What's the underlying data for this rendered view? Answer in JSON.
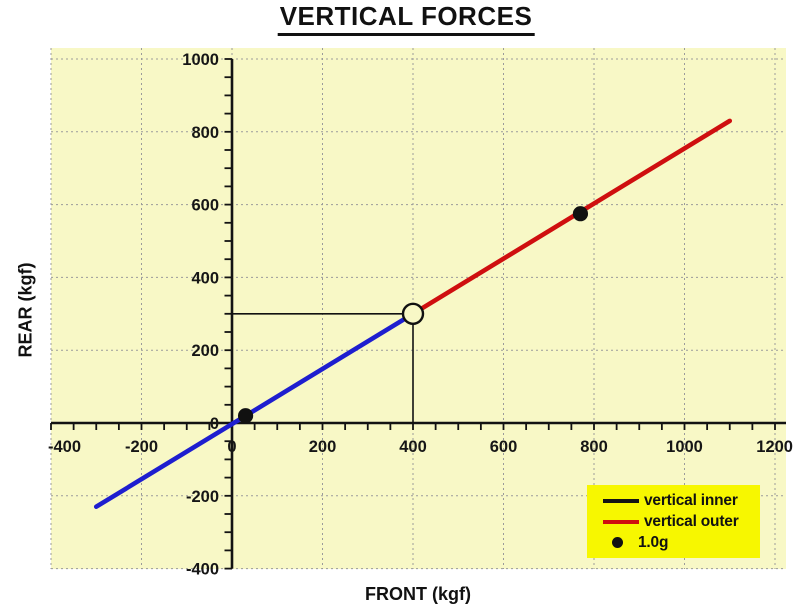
{
  "colors": {
    "page_bg": "#ffffff",
    "plot_bg": "#f8f8c6",
    "legend_bg": "#f7f700",
    "grid": "#9b9b9b",
    "axis": "#131313",
    "inner_line": "#1e1ecf",
    "outer_line": "#cf0f0f",
    "marker": "#111111"
  },
  "chart_data": {
    "type": "line",
    "title": "VERTICAL FORCES",
    "xlabel": "FRONT (kgf)",
    "ylabel": "REAR (kgf)",
    "xlim": [
      -400,
      1200
    ],
    "ylim": [
      -400,
      1000
    ],
    "x_ticks": [
      -400,
      -200,
      0,
      200,
      400,
      600,
      800,
      1000,
      1200
    ],
    "y_ticks": [
      -400,
      -200,
      0,
      200,
      400,
      600,
      800,
      1000
    ],
    "minor_tick_step": 50,
    "grid": "dashed",
    "legend_position": "bottom-right",
    "series": [
      {
        "name": "vertical inner",
        "color": "#1e1ecf",
        "points": [
          [
            -300,
            -230
          ],
          [
            400,
            300
          ]
        ]
      },
      {
        "name": "vertical outer",
        "color": "#cf0f0f",
        "points": [
          [
            400,
            300
          ],
          [
            1100,
            830
          ]
        ]
      }
    ],
    "point_series": {
      "name": "1.0g",
      "color": "#111111",
      "points": [
        [
          30,
          20
        ],
        [
          770,
          575
        ]
      ]
    },
    "crossover_marker": {
      "x": 400,
      "y": 300,
      "style": "open-circle"
    },
    "callout_lines": [
      {
        "from": [
          0,
          300
        ],
        "to": [
          400,
          300
        ]
      },
      {
        "from": [
          400,
          0
        ],
        "to": [
          400,
          300
        ]
      }
    ]
  },
  "legend": {
    "items": [
      {
        "label": "vertical inner",
        "swatch": "line",
        "color": "#141414"
      },
      {
        "label": "vertical outer",
        "swatch": "line",
        "color": "#cf0f0f"
      },
      {
        "label": "1.0g",
        "swatch": "dot",
        "color": "#111111"
      }
    ]
  }
}
